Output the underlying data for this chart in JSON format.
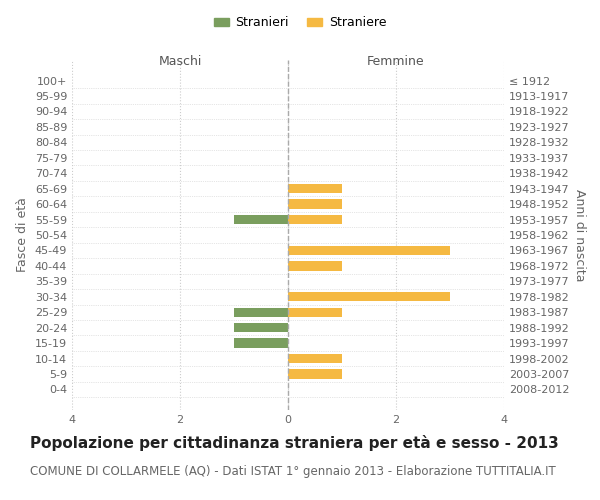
{
  "age_groups": [
    "100+",
    "95-99",
    "90-94",
    "85-89",
    "80-84",
    "75-79",
    "70-74",
    "65-69",
    "60-64",
    "55-59",
    "50-54",
    "45-49",
    "40-44",
    "35-39",
    "30-34",
    "25-29",
    "20-24",
    "15-19",
    "10-14",
    "5-9",
    "0-4"
  ],
  "birth_years": [
    "≤ 1912",
    "1913-1917",
    "1918-1922",
    "1923-1927",
    "1928-1932",
    "1933-1937",
    "1938-1942",
    "1943-1947",
    "1948-1952",
    "1953-1957",
    "1958-1962",
    "1963-1967",
    "1968-1972",
    "1973-1977",
    "1978-1982",
    "1983-1987",
    "1988-1992",
    "1993-1997",
    "1998-2002",
    "2003-2007",
    "2008-2012"
  ],
  "maschi_stranieri": [
    0,
    0,
    0,
    0,
    0,
    0,
    0,
    0,
    0,
    1,
    0,
    0,
    0,
    0,
    0,
    1,
    1,
    1,
    0,
    0,
    0
  ],
  "femmine_straniere": [
    0,
    0,
    0,
    0,
    0,
    0,
    0,
    1,
    1,
    1,
    0,
    3,
    1,
    0,
    3,
    1,
    0,
    0,
    1,
    1,
    0
  ],
  "color_maschi": "#7a9e5e",
  "color_femmine": "#f5b942",
  "title": "Popolazione per cittadinanza straniera per età e sesso - 2013",
  "subtitle": "COMUNE DI COLLARMELE (AQ) - Dati ISTAT 1° gennaio 2013 - Elaborazione TUTTITALIA.IT",
  "xlabel_left": "Maschi",
  "xlabel_right": "Femmine",
  "ylabel_left": "Fasce di età",
  "ylabel_right": "Anni di nascita",
  "legend_maschi": "Stranieri",
  "legend_femmine": "Straniere",
  "xlim": 4,
  "background_color": "#ffffff",
  "grid_color": "#cccccc",
  "title_fontsize": 11,
  "subtitle_fontsize": 8.5,
  "tick_fontsize": 8,
  "label_fontsize": 9
}
